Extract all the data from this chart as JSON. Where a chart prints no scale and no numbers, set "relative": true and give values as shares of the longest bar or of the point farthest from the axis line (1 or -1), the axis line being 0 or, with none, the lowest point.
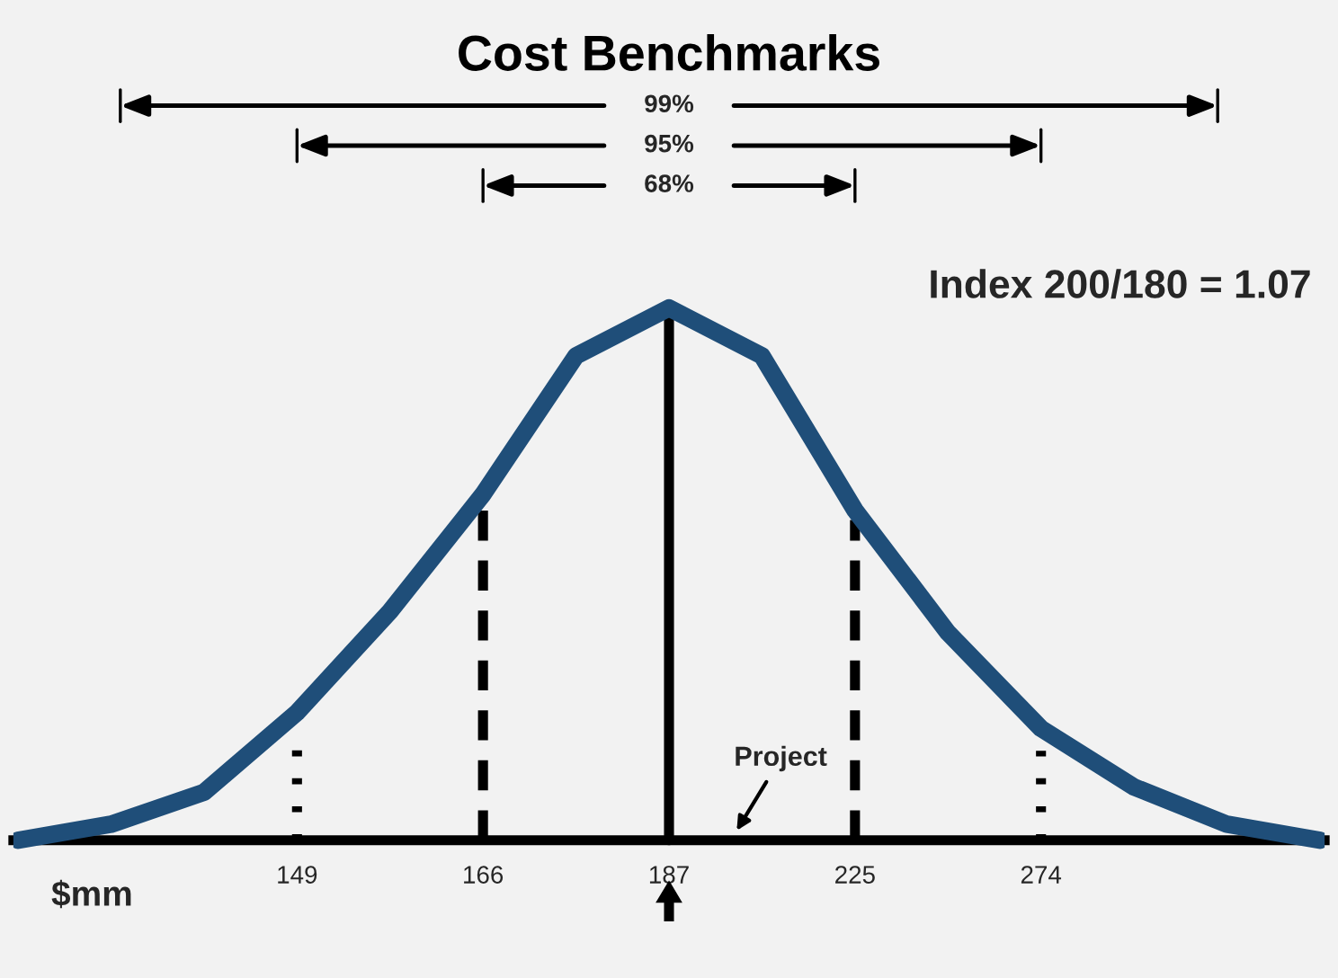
{
  "chart_data": {
    "type": "line",
    "title": "Cost Benchmarks",
    "xlabel": "$mm",
    "relative": true,
    "categories": [
      null,
      null,
      null,
      "149",
      null,
      "166",
      null,
      "187",
      null,
      "225",
      null,
      "274",
      null,
      null,
      null
    ],
    "series": [
      {
        "color": "#1f4e79",
        "values": [
          0,
          0.03,
          0.09,
          0.24,
          0.43,
          0.65,
          0.91,
          1,
          0.91,
          0.62,
          0.39,
          0.21,
          0.1,
          0.03,
          0
        ]
      }
    ],
    "ref_lines": [
      {
        "axis": "x",
        "value": "149",
        "line_style": "dotted",
        "color": "#000000"
      },
      {
        "axis": "x",
        "value": "166",
        "line_style": "dashed",
        "color": "#000000"
      },
      {
        "axis": "x",
        "value": "187",
        "line_style": "solid",
        "color": "#000000"
      },
      {
        "axis": "x",
        "value": "225",
        "line_style": "dashed",
        "color": "#000000"
      },
      {
        "axis": "x",
        "value": "274",
        "line_style": "dotted",
        "color": "#000000"
      }
    ],
    "annotations": [
      "99%",
      "95%",
      "68%",
      "Index 200/180 = 1.07",
      "Project"
    ],
    "marker": "none",
    "line_style": "solid"
  }
}
